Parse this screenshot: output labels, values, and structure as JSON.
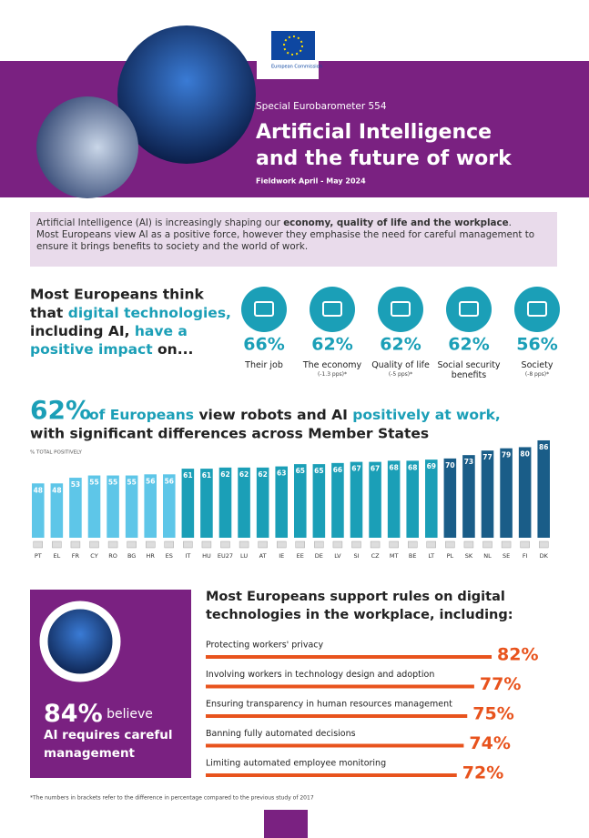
{
  "header": {
    "org": "European Commission",
    "kicker": "Special Eurobarometer 554",
    "title_line1": "Artificial Intelligence",
    "title_line2": "and the future of work",
    "fieldwork": "Fieldwork April - May 2024"
  },
  "intro": {
    "text1": "Artificial Intelligence (AI) is increasingly shaping our ",
    "bold1": "economy, quality of life and the workplace",
    "end1": ".",
    "text2": "Most Europeans view AI as a positive force, however they emphasise the need for careful management to ensure it brings benefits to society and the world of work."
  },
  "impact": {
    "heading": [
      "Most Europeans think",
      "that ",
      "digital technologies,",
      "including AI, ",
      "have a",
      "positive impact",
      " on..."
    ],
    "items": [
      {
        "value": "66%",
        "label": "Their job"
      },
      {
        "value": "62%",
        "label": "The economy",
        "note": "(-1.3 pps)*"
      },
      {
        "value": "62%",
        "label": "Quality of life",
        "note": "(-5 pps)*"
      },
      {
        "value": "62%",
        "label": "Social security benefits"
      },
      {
        "value": "56%",
        "label": "Society",
        "note": "(-8 pps)*"
      }
    ]
  },
  "chart_data": {
    "type": "bar",
    "title_big": "62%",
    "title_parts": [
      " of Europeans ",
      "view robots and AI ",
      "positively at work,"
    ],
    "title_line2": "with significant differences across Member States",
    "axis_label": "% TOTAL POSITIVELY",
    "categories": [
      "PT",
      "EL",
      "FR",
      "CY",
      "RO",
      "BG",
      "HR",
      "ES",
      "IT",
      "HU",
      "EU27",
      "LU",
      "AT",
      "IE",
      "EE",
      "DE",
      "LV",
      "SI",
      "CZ",
      "MT",
      "BE",
      "LT",
      "PL",
      "SK",
      "NL",
      "SE",
      "FI",
      "DK"
    ],
    "values": [
      48,
      48,
      53,
      55,
      55,
      55,
      56,
      56,
      61,
      61,
      62,
      62,
      62,
      63,
      65,
      65,
      66,
      67,
      67,
      68,
      68,
      69,
      70,
      73,
      77,
      79,
      80,
      86
    ],
    "colors": [
      "#5ec6e8",
      "#5ec6e8",
      "#5ec6e8",
      "#5ec6e8",
      "#5ec6e8",
      "#5ec6e8",
      "#5ec6e8",
      "#5ec6e8",
      "#1b9fb7",
      "#1b9fb7",
      "#1b9fb7",
      "#1b9fb7",
      "#1b9fb7",
      "#1b9fb7",
      "#1b9fb7",
      "#1b9fb7",
      "#1b9fb7",
      "#1b9fb7",
      "#1b9fb7",
      "#1b9fb7",
      "#1b9fb7",
      "#1b9fb7",
      "#1a5d88",
      "#1a5d88",
      "#1a5d88",
      "#1a5d88",
      "#1a5d88",
      "#1a5d88"
    ],
    "ylim": [
      0,
      90
    ]
  },
  "careful": {
    "value": "84%",
    "believe": " believe",
    "line1": "AI requires careful",
    "line2": "management"
  },
  "rules": {
    "title_line1": "Most Europeans support rules on digital",
    "title_line2": "technologies in the workplace, including:",
    "color": "#e8531d",
    "xlim": [
      0,
      100
    ],
    "items": [
      {
        "label": "Protecting workers' privacy",
        "value": 82,
        "value_label": "82%"
      },
      {
        "label": "Involving workers in technology design and adoption",
        "value": 77,
        "value_label": "77%"
      },
      {
        "label": "Ensuring transparency in human resources management",
        "value": 75,
        "value_label": "75%"
      },
      {
        "label": "Banning fully automated decisions",
        "value": 74,
        "value_label": "74%"
      },
      {
        "label": "Limiting automated employee monitoring",
        "value": 72,
        "value_label": "72%"
      }
    ]
  },
  "footnote": "*The numbers in brackets refer to the difference in percentage compared to the previous study of 2017"
}
